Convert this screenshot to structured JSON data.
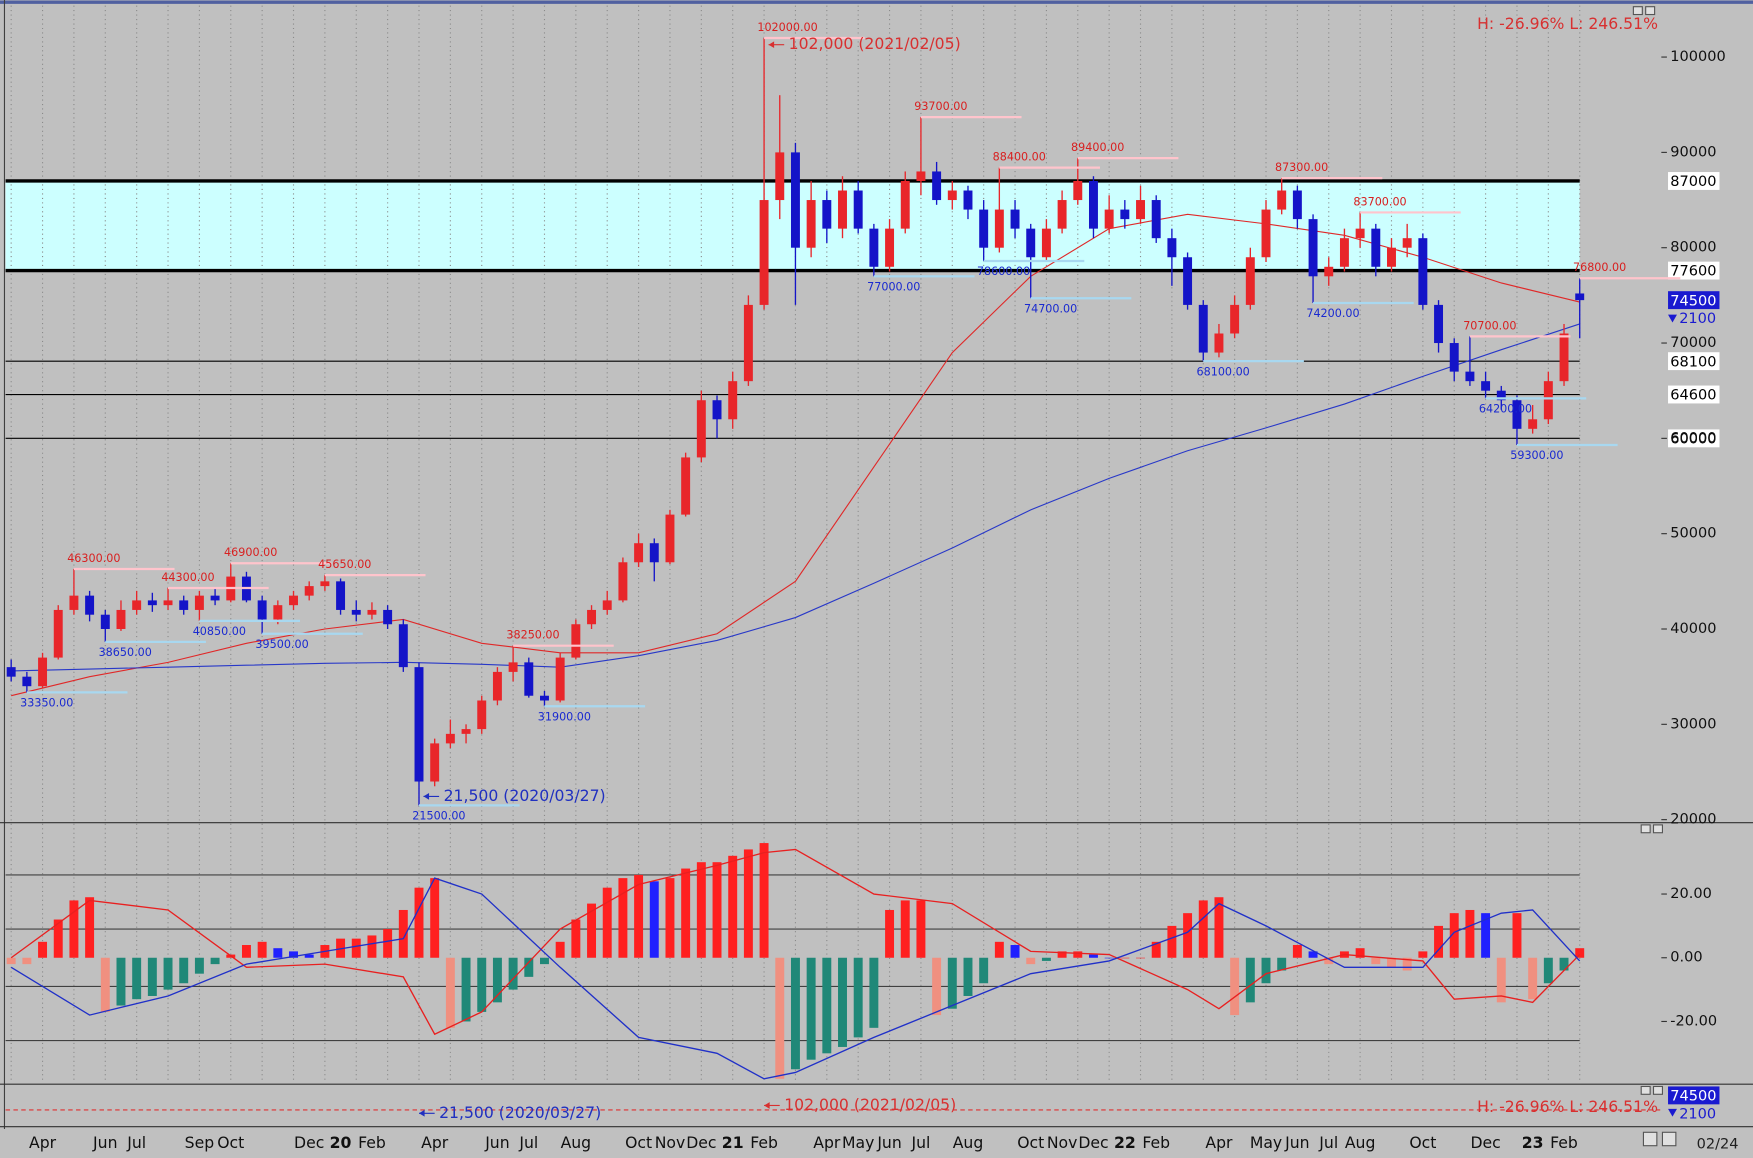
{
  "chart_data": {
    "type": "candlestick",
    "date": "02/24",
    "hl_text": "H: -26.96%  L: 246.51%",
    "categories": [
      null,
      null,
      "Apr",
      null,
      null,
      null,
      "Jun",
      null,
      "Jul",
      null,
      null,
      null,
      "Sep",
      null,
      "Oct",
      null,
      null,
      null,
      null,
      "Dec",
      null,
      "20",
      null,
      "Feb",
      null,
      null,
      null,
      "Apr",
      null,
      null,
      null,
      "Jun",
      null,
      "Jul",
      null,
      null,
      "Aug",
      null,
      null,
      null,
      "Oct",
      null,
      "Nov",
      null,
      "Dec",
      null,
      "21",
      null,
      "Feb",
      null,
      null,
      null,
      "Apr",
      null,
      "May",
      null,
      "Jun",
      null,
      "Jul",
      null,
      null,
      "Aug",
      null,
      null,
      null,
      "Oct",
      null,
      "Nov",
      null,
      "Dec",
      null,
      "22",
      null,
      "Feb",
      null,
      null,
      null,
      "Apr",
      null,
      null,
      "May",
      null,
      "Jun",
      null,
      "Jul",
      null,
      "Aug",
      null,
      null,
      null,
      "Oct",
      null,
      null,
      null,
      "Dec",
      null,
      null,
      "23",
      null,
      "Feb",
      null
    ],
    "price": {
      "ylim": [
        19800,
        105400
      ],
      "yticks": [
        20000,
        30000,
        40000,
        50000,
        60000,
        70000,
        80000,
        90000,
        100000
      ],
      "up_color": "#e8262a",
      "down_color": "#1414c8",
      "candles": [
        [
          36000,
          36800,
          34500,
          35000
        ],
        [
          35000,
          35500,
          33350,
          34000
        ],
        [
          34000,
          37500,
          33800,
          37000
        ],
        [
          37000,
          42500,
          36800,
          42000
        ],
        [
          42000,
          46300,
          41500,
          43500
        ],
        [
          43500,
          44000,
          40800,
          41500
        ],
        [
          41500,
          42000,
          38650,
          40000
        ],
        [
          40000,
          43000,
          39800,
          42000
        ],
        [
          42000,
          44000,
          41500,
          43000
        ],
        [
          43000,
          43800,
          41800,
          42500
        ],
        [
          42500,
          44300,
          42000,
          43000
        ],
        [
          43000,
          43500,
          41500,
          42000
        ],
        [
          42000,
          44000,
          40850,
          43500
        ],
        [
          43500,
          44200,
          42500,
          43000
        ],
        [
          43000,
          46900,
          42800,
          45500
        ],
        [
          45500,
          46000,
          42800,
          43000
        ],
        [
          43000,
          43500,
          39500,
          41000
        ],
        [
          41000,
          43000,
          40500,
          42500
        ],
        [
          42500,
          44000,
          42000,
          43500
        ],
        [
          43500,
          45000,
          43000,
          44500
        ],
        [
          44500,
          45650,
          44000,
          45000
        ],
        [
          45000,
          45300,
          41500,
          42000
        ],
        [
          42000,
          43000,
          40800,
          41500
        ],
        [
          41500,
          42800,
          41000,
          42000
        ],
        [
          42000,
          42500,
          40000,
          40500
        ],
        [
          40500,
          41000,
          35500,
          36000
        ],
        [
          36000,
          36500,
          21500,
          24000
        ],
        [
          24000,
          28500,
          23500,
          28000
        ],
        [
          28000,
          30500,
          27500,
          29000
        ],
        [
          29000,
          30000,
          28000,
          29500
        ],
        [
          29500,
          33000,
          29000,
          32500
        ],
        [
          32500,
          36000,
          32000,
          35500
        ],
        [
          35500,
          38250,
          34500,
          36500
        ],
        [
          36500,
          37000,
          32800,
          33000
        ],
        [
          33000,
          33500,
          31900,
          32500
        ],
        [
          32500,
          37500,
          32300,
          37000
        ],
        [
          37000,
          41000,
          36800,
          40500
        ],
        [
          40500,
          42500,
          40000,
          42000
        ],
        [
          42000,
          44000,
          41500,
          43000
        ],
        [
          43000,
          47500,
          42800,
          47000
        ],
        [
          47000,
          50000,
          46500,
          49000
        ],
        [
          49000,
          49500,
          45000,
          47000
        ],
        [
          47000,
          52500,
          46800,
          52000
        ],
        [
          52000,
          58500,
          51800,
          58000
        ],
        [
          58000,
          65000,
          57500,
          64000
        ],
        [
          64000,
          64500,
          60000,
          62000
        ],
        [
          62000,
          67000,
          61000,
          66000
        ],
        [
          66000,
          75000,
          65500,
          74000
        ],
        [
          74000,
          102000,
          73500,
          85000
        ],
        [
          85000,
          96000,
          83000,
          90000
        ],
        [
          90000,
          91000,
          74000,
          80000
        ],
        [
          80000,
          87000,
          79000,
          85000
        ],
        [
          85000,
          86000,
          80500,
          82000
        ],
        [
          82000,
          87500,
          81000,
          86000
        ],
        [
          86000,
          87000,
          81500,
          82000
        ],
        [
          82000,
          82500,
          77000,
          78000
        ],
        [
          78000,
          83000,
          77500,
          82000
        ],
        [
          82000,
          88000,
          81500,
          87000
        ],
        [
          87000,
          93700,
          85500,
          88000
        ],
        [
          88000,
          89000,
          84500,
          85000
        ],
        [
          85000,
          87000,
          84000,
          86000
        ],
        [
          86000,
          86500,
          83000,
          84000
        ],
        [
          84000,
          85000,
          78600,
          80000
        ],
        [
          80000,
          88400,
          79500,
          84000
        ],
        [
          84000,
          85000,
          81000,
          82000
        ],
        [
          82000,
          82500,
          74700,
          79000
        ],
        [
          79000,
          83000,
          78500,
          82000
        ],
        [
          82000,
          86000,
          81500,
          85000
        ],
        [
          85000,
          89400,
          84500,
          87000
        ],
        [
          87000,
          87500,
          81000,
          82000
        ],
        [
          82000,
          85500,
          81500,
          84000
        ],
        [
          84000,
          85000,
          82000,
          83000
        ],
        [
          83000,
          86500,
          82500,
          85000
        ],
        [
          85000,
          85500,
          80500,
          81000
        ],
        [
          81000,
          82000,
          76000,
          79000
        ],
        [
          79000,
          79500,
          73500,
          74000
        ],
        [
          74000,
          74500,
          68100,
          69000
        ],
        [
          69000,
          72000,
          68500,
          71000
        ],
        [
          71000,
          75000,
          70500,
          74000
        ],
        [
          74000,
          80000,
          73500,
          79000
        ],
        [
          79000,
          85000,
          78500,
          84000
        ],
        [
          84000,
          87300,
          83500,
          86000
        ],
        [
          86000,
          86500,
          82000,
          83000
        ],
        [
          83000,
          83500,
          74200,
          77000
        ],
        [
          77000,
          79000,
          76000,
          78000
        ],
        [
          78000,
          82000,
          77500,
          81000
        ],
        [
          81000,
          83700,
          80000,
          82000
        ],
        [
          82000,
          82500,
          77000,
          78000
        ],
        [
          78000,
          81000,
          77500,
          80000
        ],
        [
          80000,
          82500,
          79000,
          81000
        ],
        [
          81000,
          81500,
          73500,
          74000
        ],
        [
          74000,
          74500,
          69000,
          70000
        ],
        [
          70000,
          70500,
          66000,
          67000
        ],
        [
          67000,
          70700,
          65500,
          66000
        ],
        [
          66000,
          67000,
          64200,
          65000
        ],
        [
          65000,
          65500,
          63000,
          64000
        ],
        [
          64000,
          64500,
          59300,
          61000
        ],
        [
          61000,
          63500,
          60500,
          62000
        ],
        [
          62000,
          67000,
          61500,
          66000
        ],
        [
          66000,
          72000,
          65500,
          71000
        ],
        [
          75200,
          76800,
          70500,
          74500
        ]
      ],
      "moving_averages": [
        {
          "color": "#e02828",
          "x": [
            0,
            5,
            10,
            15,
            20,
            25,
            30,
            35,
            40,
            45,
            50,
            55,
            60,
            65,
            70,
            75,
            80,
            85,
            90,
            95,
            100
          ],
          "values": [
            33000,
            35000,
            36500,
            38500,
            40000,
            41000,
            38500,
            37500,
            37500,
            39500,
            45000,
            57000,
            69000,
            77000,
            82000,
            83500,
            82500,
            81300,
            79000,
            76300,
            74300
          ]
        },
        {
          "color": "#2838c8",
          "x": [
            0,
            5,
            10,
            15,
            20,
            25,
            30,
            35,
            40,
            45,
            50,
            55,
            60,
            65,
            70,
            75,
            80,
            85,
            90,
            95,
            100
          ],
          "values": [
            35600,
            35800,
            36000,
            36200,
            36400,
            36500,
            36300,
            36000,
            37200,
            38800,
            41200,
            44800,
            48500,
            52500,
            55800,
            58700,
            61100,
            63600,
            66500,
            69300,
            72000
          ]
        }
      ],
      "band": [
        77600,
        87000
      ],
      "band_color": "#ccffff",
      "levels": [
        87000,
        77600,
        68100,
        64600,
        60000
      ],
      "last": 74500,
      "change": 2100,
      "annotations": [
        {
          "index": 4,
          "value": 46300,
          "label": "46300.00"
        },
        {
          "index": 10,
          "value": 44300,
          "label": "44300.00"
        },
        {
          "index": 14,
          "value": 46900,
          "label": "46900.00"
        },
        {
          "index": 20,
          "value": 45650,
          "label": "45650.00"
        },
        {
          "index": 32,
          "value": 38250,
          "label": "38250.00"
        },
        {
          "index": 48,
          "value": 102000,
          "label": "102000.00"
        },
        {
          "index": 58,
          "value": 93700,
          "label": "93700.00"
        },
        {
          "index": 63,
          "value": 88400,
          "label": "88400.00"
        },
        {
          "index": 68,
          "value": 89400,
          "label": "89400.00"
        },
        {
          "index": 81,
          "value": 87300,
          "label": "87300.00"
        },
        {
          "index": 86,
          "value": 83700,
          "label": "83700.00"
        },
        {
          "index": 93,
          "value": 70700,
          "label": "70700.00"
        },
        {
          "index": 100,
          "value": 76800,
          "label": "76800.00"
        },
        {
          "index": 1,
          "value": 33350,
          "label": "33350.00"
        },
        {
          "index": 6,
          "value": 38650,
          "label": "38650.00"
        },
        {
          "index": 12,
          "value": 40850,
          "label": "40850.00"
        },
        {
          "index": 16,
          "value": 39500,
          "label": "39500.00"
        },
        {
          "index": 26,
          "value": 21500,
          "label": "21500.00"
        },
        {
          "index": 34,
          "value": 31900,
          "label": "31900.00"
        },
        {
          "index": 55,
          "value": 77000,
          "label": "77000.00"
        },
        {
          "index": 62,
          "value": 78600,
          "label": "78600.00"
        },
        {
          "index": 65,
          "value": 74700,
          "label": "74700.00"
        },
        {
          "index": 76,
          "value": 68100,
          "label": "68100.00"
        },
        {
          "index": 83,
          "value": 74200,
          "label": "74200.00"
        },
        {
          "index": 94,
          "value": 64200,
          "label": "64200.00"
        },
        {
          "index": 96,
          "value": 59300,
          "label": "59300.00"
        }
      ],
      "extremes": [
        {
          "text": "102,000 (2021/02/05)",
          "color": "#d83030"
        },
        {
          "text": "21,500 (2020/03/27)",
          "color": "#2030c0"
        }
      ]
    },
    "macd": {
      "ylim": [
        -39,
        41
      ],
      "yticks": [
        {
          "value": 20,
          "label": "20.00"
        },
        {
          "value": 0,
          "label": "0.00"
        },
        {
          "value": -20,
          "label": "-20.00"
        }
      ],
      "levels": [
        26,
        9,
        -9,
        -26
      ],
      "colors": {
        "rise_pos": "#ff2020",
        "fall_pos": "#2020ff",
        "fall_neg": "#f09080",
        "rise_neg": "#208878"
      },
      "histogram": [
        -2,
        -2,
        5,
        12,
        18,
        19,
        -17,
        -15,
        -13,
        -12,
        -10,
        -8,
        -5,
        -2,
        1,
        4,
        5,
        3,
        2,
        1,
        4,
        6,
        6,
        7,
        9,
        15,
        22,
        25,
        -22,
        -20,
        -17,
        -14,
        -10,
        -6,
        -2,
        5,
        12,
        17,
        22,
        25,
        26,
        24,
        25,
        28,
        30,
        30,
        32,
        34,
        36,
        -38,
        -35,
        -32,
        -30,
        -28,
        -25,
        -22,
        15,
        18,
        18,
        -18,
        -16,
        -12,
        -8,
        5,
        4,
        -2,
        -1,
        2,
        2,
        1,
        0,
        0,
        0,
        5,
        10,
        14,
        18,
        19,
        -18,
        -14,
        -8,
        -4,
        4,
        2,
        -2,
        2,
        3,
        -2,
        -3,
        -4,
        2,
        10,
        14,
        15,
        14,
        -14,
        14,
        -13,
        -8,
        -4,
        3
      ],
      "lines": [
        {
          "color": "#e82020",
          "x": [
            0,
            5,
            10,
            15,
            20,
            25,
            27,
            30,
            35,
            40,
            45,
            48,
            50,
            55,
            60,
            65,
            70,
            75,
            77,
            80,
            85,
            90,
            92,
            95,
            97,
            100
          ],
          "values": [
            0,
            18,
            15,
            -3,
            -2,
            -6,
            -24,
            -17,
            9,
            23,
            29,
            33,
            34,
            20,
            17,
            2,
            1,
            -10,
            -16,
            -5,
            1,
            -1,
            -13,
            -12,
            -14,
            1
          ]
        },
        {
          "color": "#2030c8",
          "x": [
            0,
            5,
            10,
            15,
            20,
            25,
            27,
            30,
            35,
            40,
            45,
            48,
            50,
            55,
            60,
            65,
            70,
            75,
            77,
            80,
            85,
            90,
            92,
            95,
            97,
            100
          ],
          "values": [
            -3,
            -18,
            -12,
            -2,
            2,
            6,
            25,
            20,
            -3,
            -25,
            -30,
            -38,
            -36,
            -25,
            -15,
            -5,
            -1,
            8,
            17,
            10,
            -3,
            -3,
            8,
            14,
            15,
            -1
          ]
        }
      ]
    }
  }
}
